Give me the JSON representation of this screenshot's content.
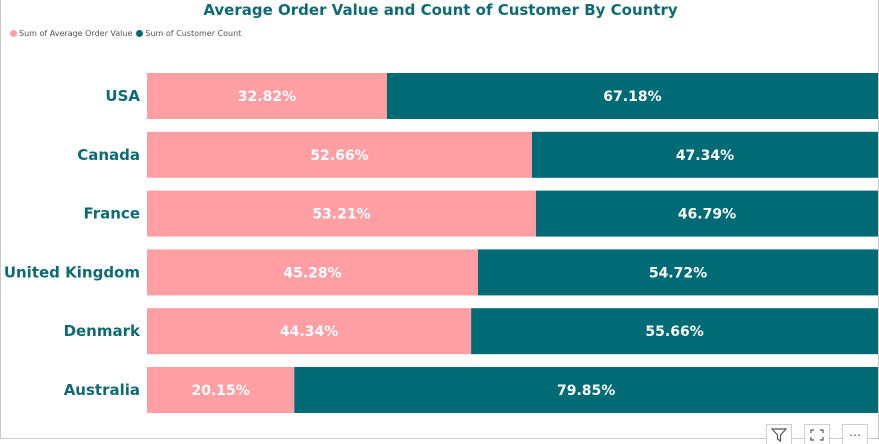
{
  "chart_data": {
    "type": "bar",
    "stacked": true,
    "orientation": "horizontal",
    "percent_stacked": true,
    "title": "Average Order Value and Count of Customer By Country",
    "categories": [
      "USA",
      "Canada",
      "France",
      "United Kingdom",
      "Denmark",
      "Australia"
    ],
    "series": [
      {
        "name": "Sum of Average Order Value",
        "color": "#ff9ea3",
        "values": [
          32.82,
          52.66,
          53.21,
          45.28,
          44.34,
          20.15
        ],
        "labels": [
          "32.82%",
          "52.66%",
          "53.21%",
          "45.28%",
          "44.34%",
          "20.15%"
        ]
      },
      {
        "name": "Sum of Customer Count",
        "color": "#006b75",
        "values": [
          67.18,
          47.34,
          46.79,
          54.72,
          55.66,
          79.85
        ],
        "labels": [
          "67.18%",
          "47.34%",
          "46.79%",
          "54.72%",
          "55.66%",
          "79.85%"
        ]
      }
    ],
    "xlim": [
      0,
      100
    ],
    "legend_position": "top-left",
    "grid": false
  },
  "toolbar": {
    "icons": [
      "filter-icon",
      "focus-mode-icon",
      "more-options-icon"
    ],
    "more_glyph": "⋯"
  }
}
